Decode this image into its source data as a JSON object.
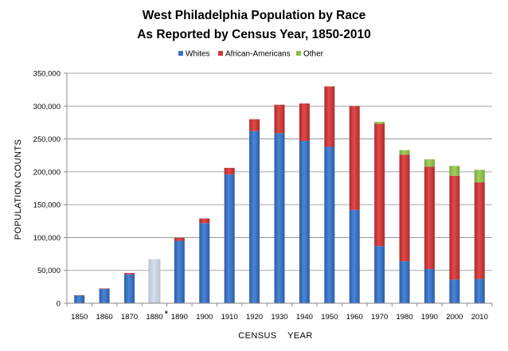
{
  "chart_data": {
    "type": "bar",
    "stacked": true,
    "title": "West Philadelphia Population by Race",
    "subtitle": "As Reported by Census Year, 1850-2010",
    "xlabel": "CENSUS    YEAR",
    "ylabel": "POPULATION COUNTS",
    "ylim": [
      0,
      350000
    ],
    "ytick_step": 50000,
    "yticks": [
      "0",
      "50,000",
      "100,000",
      "150,000",
      "200,000",
      "250,000",
      "300,000",
      "350,000"
    ],
    "categories": [
      "1850",
      "1860",
      "1870",
      "1880",
      "1890",
      "1900",
      "1910",
      "1920",
      "1930",
      "1940",
      "1950",
      "1960",
      "1970",
      "1980",
      "1990",
      "2000",
      "2010"
    ],
    "asterisk_category": "1880",
    "asterisk_label": "*",
    "grid": true,
    "legend_position": "top",
    "series": [
      {
        "name": "Whites",
        "color": "#3a6fc2",
        "values": [
          12000,
          22000,
          44000,
          0,
          95000,
          122000,
          196000,
          262000,
          259000,
          247000,
          238000,
          142000,
          87000,
          64000,
          52000,
          36000,
          37000
        ]
      },
      {
        "name": "African-Americans",
        "color": "#cc3c3c",
        "values": [
          300,
          600,
          2000,
          0,
          4500,
          7000,
          10000,
          18000,
          43000,
          57000,
          92000,
          158000,
          186000,
          162000,
          156000,
          158000,
          147000
        ]
      },
      {
        "name": "Other",
        "color": "#8dbd4a",
        "values": [
          0,
          0,
          0,
          0,
          0,
          0,
          0,
          0,
          0,
          0,
          0,
          500,
          3000,
          7000,
          11000,
          15000,
          19000
        ]
      }
    ],
    "unclassified": {
      "category": "1880",
      "value": 67000,
      "color": "#c8d1de"
    }
  }
}
